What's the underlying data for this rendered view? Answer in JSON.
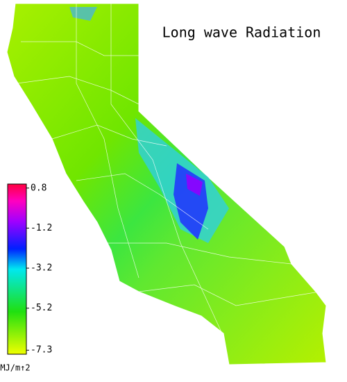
{
  "title": "Long wave Radiation",
  "legend": {
    "range": [
      -7.5,
      1.0
    ],
    "ticks": [
      0.8,
      -1.2,
      -3.2,
      -5.2,
      -7.3
    ],
    "unit": "MJ/m↑2"
  }
}
